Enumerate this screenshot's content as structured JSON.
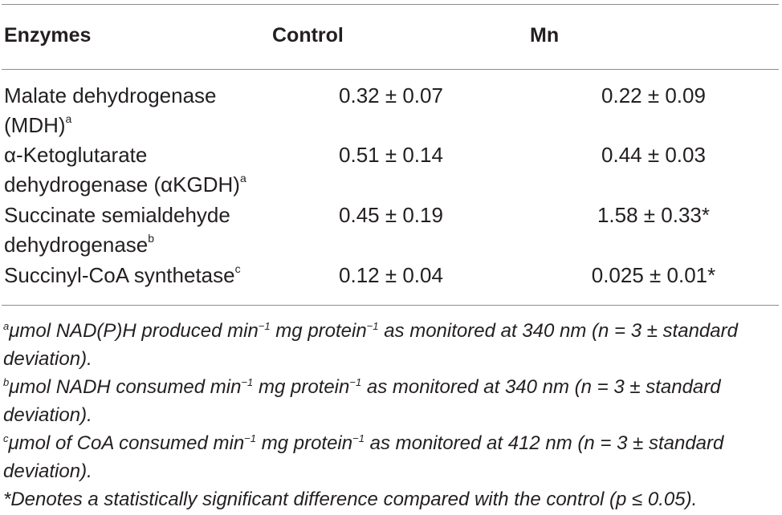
{
  "table": {
    "headers": [
      "Enzymes",
      "Control",
      "Mn"
    ],
    "rows": [
      {
        "enzyme_line1": "Malate dehydrogenase",
        "enzyme_line2": "(MDH)",
        "sup": "a",
        "control": "0.32 ± 0.07",
        "mn": "0.22 ± 0.09"
      },
      {
        "enzyme_line1": "α-Ketoglutarate",
        "enzyme_line2": "dehydrogenase (αKGDH)",
        "sup": "a",
        "control": "0.51 ± 0.14",
        "mn": "0.44 ± 0.03"
      },
      {
        "enzyme_line1": "Succinate semialdehyde",
        "enzyme_line2": "dehydrogenase",
        "sup": "b",
        "control": "0.45 ± 0.19",
        "mn": "1.58 ± 0.33*"
      },
      {
        "enzyme_line1": "Succinyl-CoA synthetase",
        "enzyme_line2": "",
        "sup": "c",
        "control": "0.12 ± 0.04",
        "mn": "0.025 ± 0.01*"
      }
    ]
  },
  "footnotes": {
    "a": {
      "mark": "a",
      "t1": "μmol NAD(P)H produced min",
      "t2": " mg protein",
      "t3": " as monitored at 340 nm (n = 3 ± standard deviation).",
      "exp": "−1"
    },
    "b": {
      "mark": "b",
      "t1": "μmol NADH consumed min",
      "t2": " mg protein",
      "t3": " as monitored at 340 nm (n = 3 ± standard deviation).",
      "exp": "−1"
    },
    "c": {
      "mark": "c",
      "t1": "μmol of CoA consumed min",
      "t2": " mg protein",
      "t3": " as monitored at 412 nm (n = 3 ± standard deviation).",
      "exp": "−1"
    },
    "star": "*Denotes a statistically significant difference compared with the control (p ≤ 0.05)."
  }
}
